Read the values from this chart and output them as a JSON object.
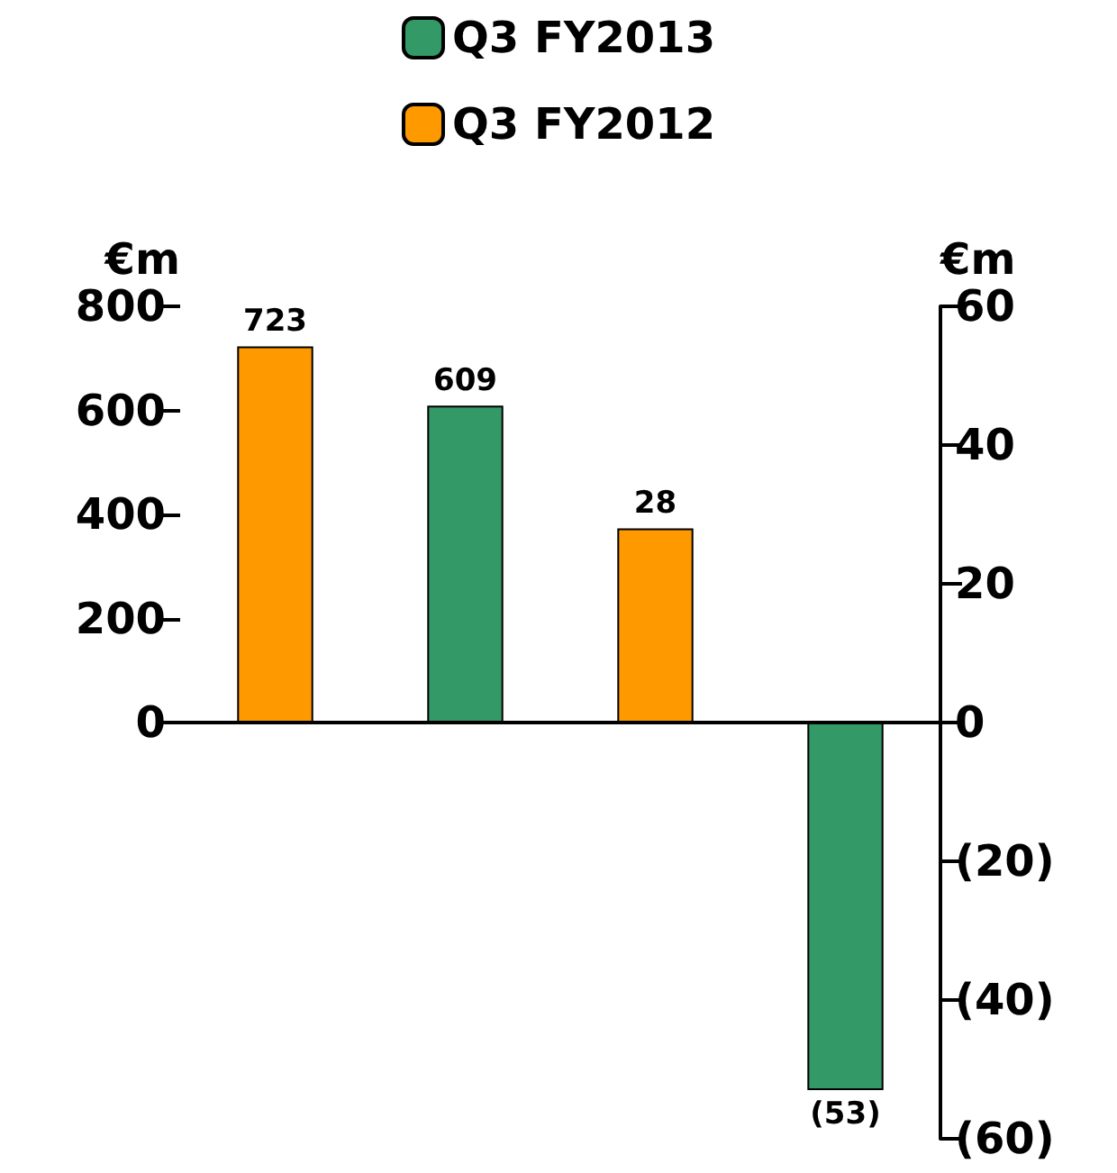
{
  "chart_data": {
    "type": "bar",
    "categories": [
      null,
      null,
      null,
      null
    ],
    "series": [
      {
        "name": "Q3 FY2013",
        "color": "#339966",
        "values": [
          null,
          609,
          null,
          null
        ]
      },
      {
        "name": "Q3 FY2012",
        "color": "#ff9900",
        "values": [
          723,
          null,
          null,
          null
        ]
      },
      {
        "color": "#339966",
        "axis": "y2",
        "values": [
          null,
          null,
          null,
          -53
        ]
      },
      {
        "color": "#ff9900",
        "axis": "y2",
        "values": [
          null,
          null,
          28,
          null
        ]
      }
    ],
    "value_labels": [
      "723",
      "609",
      "28",
      "(53)"
    ],
    "ylabel": "€m",
    "y2label": "€m",
    "ylim": [
      -800,
      800
    ],
    "yticks": [
      0,
      200,
      400,
      600,
      800
    ],
    "y2lim": [
      -60,
      60
    ],
    "y2ticks": [
      {
        "value": -60,
        "label": "(60)"
      },
      {
        "value": -40,
        "label": "(40)"
      },
      {
        "value": -20,
        "label": "(20)"
      },
      0,
      20,
      40,
      60
    ],
    "legend": "top"
  }
}
